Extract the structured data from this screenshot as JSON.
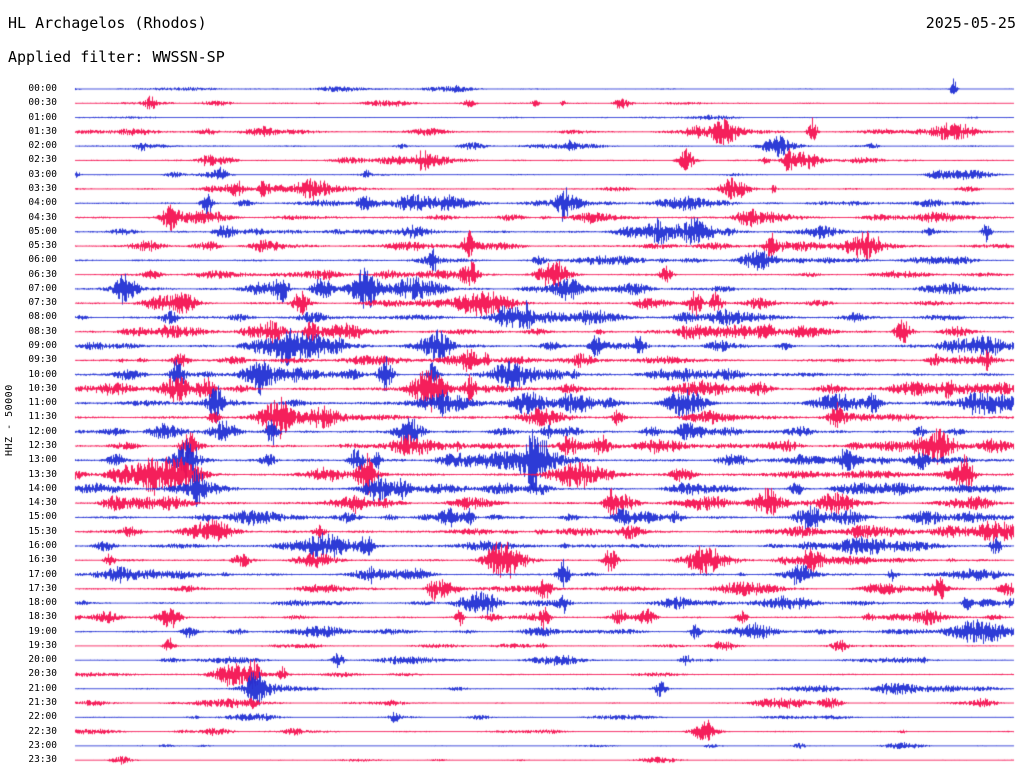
{
  "header": {
    "station": "HL Archagelos (Rhodos)",
    "date": "2025-05-25",
    "filter": "Applied filter: WWSSN-SP"
  },
  "plot": {
    "channel_label": "HHZ - 50000"
  },
  "chart_data": {
    "type": "line",
    "subtype": "helicorder-seismogram-dayplot",
    "title": "HL Archagelos (Rhodos)",
    "date": "2025-05-25",
    "filter": "WWSSN-SP",
    "channel": "HHZ",
    "scale": 50000,
    "row_duration_minutes": 30,
    "num_rows": 48,
    "legend": "traces alternate blue/red every 30 minutes, times at left edge",
    "colors": {
      "blue": "#2230d4",
      "red": "#f41352"
    },
    "rows": [
      {
        "time": "00:00",
        "color": "blue",
        "amp": 1.1,
        "bursts": 6,
        "peak": 4,
        "events": [
          {
            "pos": 0.935,
            "w": 3,
            "h": 9
          }
        ]
      },
      {
        "time": "00:30",
        "color": "red",
        "amp": 1.2,
        "bursts": 9,
        "peak": 5,
        "events": [
          {
            "pos": 0.08,
            "w": 5,
            "h": 5
          },
          {
            "pos": 0.42,
            "w": 6,
            "h": 5
          },
          {
            "pos": 0.49,
            "w": 5,
            "h": 4
          }
        ]
      },
      {
        "time": "01:00",
        "color": "blue",
        "amp": 1.0,
        "bursts": 5,
        "peak": 3,
        "events": []
      },
      {
        "time": "01:30",
        "color": "red",
        "amp": 1.4,
        "bursts": 12,
        "peak": 7,
        "events": [
          {
            "pos": 0.785,
            "w": 4,
            "h": 26
          },
          {
            "pos": 0.925,
            "w": 26,
            "h": 8
          },
          {
            "pos": 0.66,
            "w": 8,
            "h": 6
          }
        ]
      },
      {
        "time": "02:00",
        "color": "blue",
        "amp": 1.4,
        "bursts": 9,
        "peak": 6,
        "events": [
          {
            "pos": 0.07,
            "w": 6,
            "h": 5
          }
        ]
      },
      {
        "time": "02:30",
        "color": "red",
        "amp": 1.4,
        "bursts": 10,
        "peak": 8,
        "events": [
          {
            "pos": 0.65,
            "w": 8,
            "h": 8
          },
          {
            "pos": 0.76,
            "w": 5,
            "h": 7
          },
          {
            "pos": 0.37,
            "w": 6,
            "h": 6
          }
        ]
      },
      {
        "time": "03:00",
        "color": "blue",
        "amp": 1.2,
        "bursts": 7,
        "peak": 5,
        "events": [
          {
            "pos": 0.31,
            "w": 4,
            "h": 6
          }
        ]
      },
      {
        "time": "03:30",
        "color": "red",
        "amp": 1.5,
        "bursts": 10,
        "peak": 7,
        "events": [
          {
            "pos": 0.17,
            "w": 7,
            "h": 7
          },
          {
            "pos": 0.2,
            "w": 5,
            "h": 6
          }
        ]
      },
      {
        "time": "04:00",
        "color": "blue",
        "amp": 1.7,
        "bursts": 12,
        "peak": 8,
        "events": [
          {
            "pos": 0.14,
            "w": 6,
            "h": 8
          },
          {
            "pos": 0.52,
            "w": 5,
            "h": 7
          }
        ]
      },
      {
        "time": "04:30",
        "color": "red",
        "amp": 1.7,
        "bursts": 11,
        "peak": 7,
        "events": [
          {
            "pos": 0.1,
            "w": 8,
            "h": 7
          }
        ]
      },
      {
        "time": "05:00",
        "color": "blue",
        "amp": 1.9,
        "bursts": 13,
        "peak": 9,
        "events": [
          {
            "pos": 0.16,
            "w": 9,
            "h": 9
          },
          {
            "pos": 0.97,
            "w": 4,
            "h": 10
          }
        ]
      },
      {
        "time": "05:30",
        "color": "red",
        "amp": 1.9,
        "bursts": 12,
        "peak": 9,
        "events": [
          {
            "pos": 0.42,
            "w": 6,
            "h": 9
          },
          {
            "pos": 0.74,
            "w": 6,
            "h": 8
          }
        ]
      },
      {
        "time": "06:00",
        "color": "blue",
        "amp": 1.7,
        "bursts": 11,
        "peak": 8,
        "events": [
          {
            "pos": 0.38,
            "w": 5,
            "h": 9
          }
        ]
      },
      {
        "time": "06:30",
        "color": "red",
        "amp": 1.7,
        "bursts": 11,
        "peak": 8,
        "events": [
          {
            "pos": 0.42,
            "w": 7,
            "h": 10
          },
          {
            "pos": 0.63,
            "w": 6,
            "h": 7
          }
        ]
      },
      {
        "time": "07:00",
        "color": "blue",
        "amp": 1.9,
        "bursts": 13,
        "peak": 10,
        "events": [
          {
            "pos": 0.22,
            "w": 7,
            "h": 10
          }
        ]
      },
      {
        "time": "07:30",
        "color": "red",
        "amp": 1.9,
        "bursts": 13,
        "peak": 10,
        "events": [
          {
            "pos": 0.24,
            "w": 8,
            "h": 11
          },
          {
            "pos": 0.66,
            "w": 6,
            "h": 8
          }
        ]
      },
      {
        "time": "08:00",
        "color": "blue",
        "amp": 2.1,
        "bursts": 14,
        "peak": 10,
        "events": [
          {
            "pos": 0.48,
            "w": 6,
            "h": 9
          }
        ]
      },
      {
        "time": "08:30",
        "color": "red",
        "amp": 2.1,
        "bursts": 15,
        "peak": 11,
        "events": [
          {
            "pos": 0.25,
            "w": 7,
            "h": 10
          },
          {
            "pos": 0.88,
            "w": 8,
            "h": 10
          }
        ]
      },
      {
        "time": "09:00",
        "color": "blue",
        "amp": 2.1,
        "bursts": 15,
        "peak": 11,
        "events": [
          {
            "pos": 0.28,
            "w": 7,
            "h": 11
          },
          {
            "pos": 0.6,
            "w": 6,
            "h": 9
          }
        ]
      },
      {
        "time": "09:30",
        "color": "red",
        "amp": 2.1,
        "bursts": 15,
        "peak": 10,
        "events": [
          {
            "pos": 0.42,
            "w": 7,
            "h": 10
          },
          {
            "pos": 0.97,
            "w": 5,
            "h": 10
          }
        ]
      },
      {
        "time": "10:00",
        "color": "blue",
        "amp": 2.3,
        "bursts": 16,
        "peak": 11,
        "events": [
          {
            "pos": 0.33,
            "w": 7,
            "h": 11
          },
          {
            "pos": 0.38,
            "w": 5,
            "h": 10
          }
        ]
      },
      {
        "time": "10:30",
        "color": "red",
        "amp": 2.3,
        "bursts": 17,
        "peak": 12,
        "events": [
          {
            "pos": 0.14,
            "w": 8,
            "h": 12
          },
          {
            "pos": 0.42,
            "w": 6,
            "h": 10
          }
        ]
      },
      {
        "time": "11:00",
        "color": "blue",
        "amp": 2.3,
        "bursts": 17,
        "peak": 12,
        "events": [
          {
            "pos": 0.15,
            "w": 7,
            "h": 13
          },
          {
            "pos": 0.85,
            "w": 6,
            "h": 10
          }
        ]
      },
      {
        "time": "11:30",
        "color": "red",
        "amp": 2.1,
        "bursts": 15,
        "peak": 11,
        "events": [
          {
            "pos": 0.81,
            "w": 6,
            "h": 9
          }
        ]
      },
      {
        "time": "12:00",
        "color": "blue",
        "amp": 2.1,
        "bursts": 15,
        "peak": 11,
        "events": [
          {
            "pos": 0.21,
            "w": 6,
            "h": 10
          }
        ]
      },
      {
        "time": "12:30",
        "color": "red",
        "amp": 2.3,
        "bursts": 16,
        "peak": 11,
        "events": [
          {
            "pos": 0.12,
            "w": 7,
            "h": 11
          },
          {
            "pos": 0.56,
            "w": 7,
            "h": 10
          }
        ]
      },
      {
        "time": "13:00",
        "color": "blue",
        "amp": 2.3,
        "bursts": 17,
        "peak": 12,
        "events": [
          {
            "pos": 0.3,
            "w": 7,
            "h": 12
          },
          {
            "pos": 0.82,
            "w": 8,
            "h": 11
          }
        ]
      },
      {
        "time": "13:30",
        "color": "red",
        "amp": 2.3,
        "bursts": 17,
        "peak": 12,
        "events": [
          {
            "pos": 0.31,
            "w": 8,
            "h": 13
          },
          {
            "pos": 0.95,
            "w": 6,
            "h": 11
          }
        ]
      },
      {
        "time": "14:00",
        "color": "blue",
        "amp": 2.1,
        "bursts": 16,
        "peak": 11,
        "events": [
          {
            "pos": 0.13,
            "w": 6,
            "h": 11
          },
          {
            "pos": 0.35,
            "w": 6,
            "h": 10
          }
        ]
      },
      {
        "time": "14:30",
        "color": "red",
        "amp": 2.1,
        "bursts": 16,
        "peak": 11,
        "events": [
          {
            "pos": 0.3,
            "w": 7,
            "h": 11
          }
        ]
      },
      {
        "time": "15:00",
        "color": "blue",
        "amp": 2.1,
        "bursts": 16,
        "peak": 11,
        "events": [
          {
            "pos": 0.42,
            "w": 6,
            "h": 10
          },
          {
            "pos": 0.64,
            "w": 7,
            "h": 10
          }
        ]
      },
      {
        "time": "15:30",
        "color": "red",
        "amp": 2.1,
        "bursts": 15,
        "peak": 10,
        "events": [
          {
            "pos": 0.26,
            "w": 6,
            "h": 10
          }
        ]
      },
      {
        "time": "16:00",
        "color": "blue",
        "amp": 2.1,
        "bursts": 14,
        "peak": 10,
        "events": [
          {
            "pos": 0.31,
            "w": 6,
            "h": 10
          },
          {
            "pos": 0.98,
            "w": 5,
            "h": 9
          }
        ]
      },
      {
        "time": "16:30",
        "color": "red",
        "amp": 1.9,
        "bursts": 14,
        "peak": 10,
        "events": [
          {
            "pos": 0.57,
            "w": 6,
            "h": 9
          }
        ]
      },
      {
        "time": "17:00",
        "color": "blue",
        "amp": 1.9,
        "bursts": 14,
        "peak": 10,
        "events": [
          {
            "pos": 0.52,
            "w": 6,
            "h": 10
          },
          {
            "pos": 0.87,
            "w": 5,
            "h": 8
          }
        ]
      },
      {
        "time": "17:30",
        "color": "red",
        "amp": 1.9,
        "bursts": 13,
        "peak": 9,
        "events": [
          {
            "pos": 0.5,
            "w": 7,
            "h": 9
          },
          {
            "pos": 0.92,
            "w": 5,
            "h": 8
          }
        ]
      },
      {
        "time": "18:00",
        "color": "blue",
        "amp": 1.7,
        "bursts": 12,
        "peak": 9,
        "events": [
          {
            "pos": 0.52,
            "w": 6,
            "h": 9
          },
          {
            "pos": 0.95,
            "w": 5,
            "h": 8
          }
        ]
      },
      {
        "time": "18:30",
        "color": "red",
        "amp": 1.7,
        "bursts": 12,
        "peak": 9,
        "events": [
          {
            "pos": 0.5,
            "w": 5,
            "h": 10
          },
          {
            "pos": 0.58,
            "w": 6,
            "h": 9
          }
        ]
      },
      {
        "time": "19:00",
        "color": "blue",
        "amp": 1.6,
        "bursts": 10,
        "peak": 8,
        "events": [
          {
            "pos": 0.12,
            "w": 7,
            "h": 8
          },
          {
            "pos": 0.66,
            "w": 5,
            "h": 7
          }
        ]
      },
      {
        "time": "19:30",
        "color": "red",
        "amp": 1.3,
        "bursts": 8,
        "peak": 6,
        "events": [
          {
            "pos": 0.1,
            "w": 5,
            "h": 8
          }
        ]
      },
      {
        "time": "20:00",
        "color": "blue",
        "amp": 1.3,
        "bursts": 8,
        "peak": 6,
        "events": [
          {
            "pos": 0.28,
            "w": 5,
            "h": 6
          },
          {
            "pos": 0.65,
            "w": 5,
            "h": 5
          }
        ]
      },
      {
        "time": "20:30",
        "color": "red",
        "amp": 1.3,
        "bursts": 8,
        "peak": 7,
        "events": [
          {
            "pos": 0.19,
            "w": 6,
            "h": 13
          },
          {
            "pos": 0.22,
            "w": 4,
            "h": 10
          }
        ]
      },
      {
        "time": "21:00",
        "color": "blue",
        "amp": 1.3,
        "bursts": 8,
        "peak": 6,
        "events": [
          {
            "pos": 0.19,
            "w": 8,
            "h": 11
          }
        ]
      },
      {
        "time": "21:30",
        "color": "red",
        "amp": 1.2,
        "bursts": 7,
        "peak": 5,
        "events": [
          {
            "pos": 0.19,
            "w": 5,
            "h": 6
          }
        ]
      },
      {
        "time": "22:00",
        "color": "blue",
        "amp": 1.1,
        "bursts": 6,
        "peak": 4,
        "events": [
          {
            "pos": 0.34,
            "w": 5,
            "h": 4
          }
        ]
      },
      {
        "time": "22:30",
        "color": "red",
        "amp": 1.2,
        "bursts": 8,
        "peak": 5,
        "events": [
          {
            "pos": 0.67,
            "w": 12,
            "h": 11
          }
        ]
      },
      {
        "time": "23:00",
        "color": "blue",
        "amp": 1.0,
        "bursts": 5,
        "peak": 3,
        "events": [
          {
            "pos": 0.77,
            "w": 6,
            "h": 4
          }
        ]
      },
      {
        "time": "23:30",
        "color": "red",
        "amp": 1.0,
        "bursts": 5,
        "peak": 3,
        "events": []
      }
    ]
  }
}
